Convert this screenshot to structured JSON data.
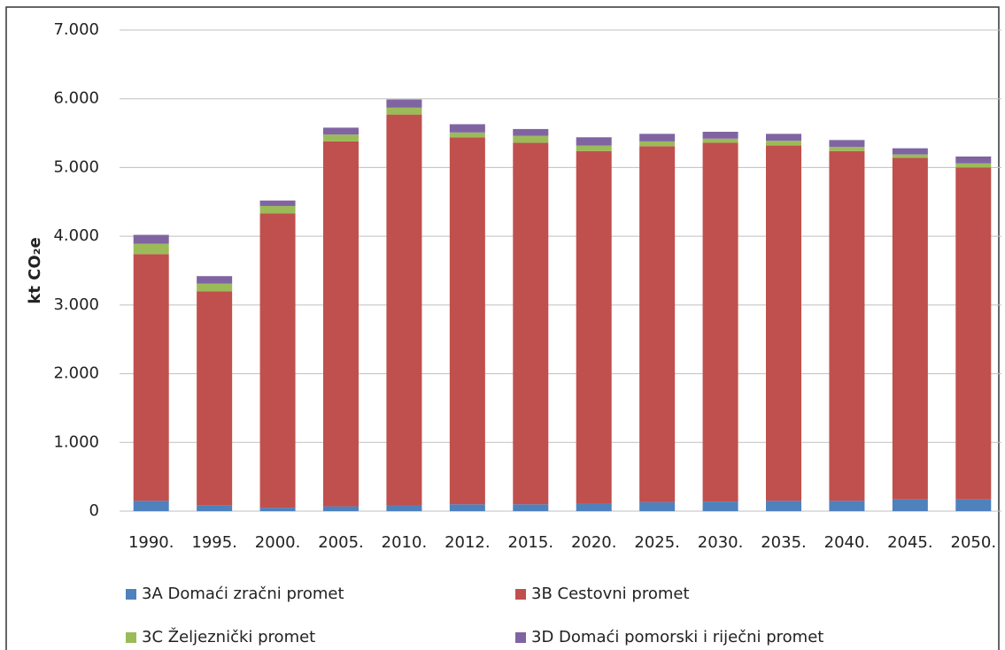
{
  "chart_data": {
    "type": "stacked_bar",
    "y_label": "kt CO₂e",
    "categories": [
      "1990.",
      "1995.",
      "2000.",
      "2005.",
      "2010.",
      "2012.",
      "2015.",
      "2020.",
      "2025.",
      "2030.",
      "2035.",
      "2040.",
      "2045.",
      "2050."
    ],
    "series": [
      {
        "name": "3A Domaći zračni promet",
        "color": "#4f81bd",
        "values": [
          150,
          80,
          50,
          70,
          90,
          100,
          100,
          110,
          130,
          140,
          150,
          150,
          170,
          170
        ]
      },
      {
        "name": "3B Cestovni promet",
        "color": "#c0504d",
        "values": [
          3590,
          3120,
          4280,
          5310,
          5680,
          5340,
          5260,
          5130,
          5180,
          5220,
          5170,
          5090,
          4970,
          4830
        ]
      },
      {
        "name": "3C Željeznički promet",
        "color": "#9bbb59",
        "values": [
          150,
          110,
          110,
          100,
          100,
          70,
          100,
          80,
          70,
          60,
          70,
          60,
          50,
          60
        ]
      },
      {
        "name": "3D Domaći pomorski i riječni promet",
        "color": "#8064a2",
        "values": [
          130,
          110,
          80,
          100,
          120,
          120,
          100,
          120,
          110,
          100,
          100,
          100,
          90,
          100
        ]
      }
    ],
    "ylim": [
      0,
      7000
    ],
    "yticks": [
      0,
      {
        "value": 1000,
        "label": "1.000"
      },
      {
        "value": 2000,
        "label": "2.000"
      },
      {
        "value": 3000,
        "label": "3.000"
      },
      {
        "value": 4000,
        "label": "4.000"
      },
      {
        "value": 5000,
        "label": "5.000"
      },
      {
        "value": 6000,
        "label": "6.000"
      },
      {
        "value": 7000,
        "label": "7.000"
      }
    ],
    "grid": true
  }
}
